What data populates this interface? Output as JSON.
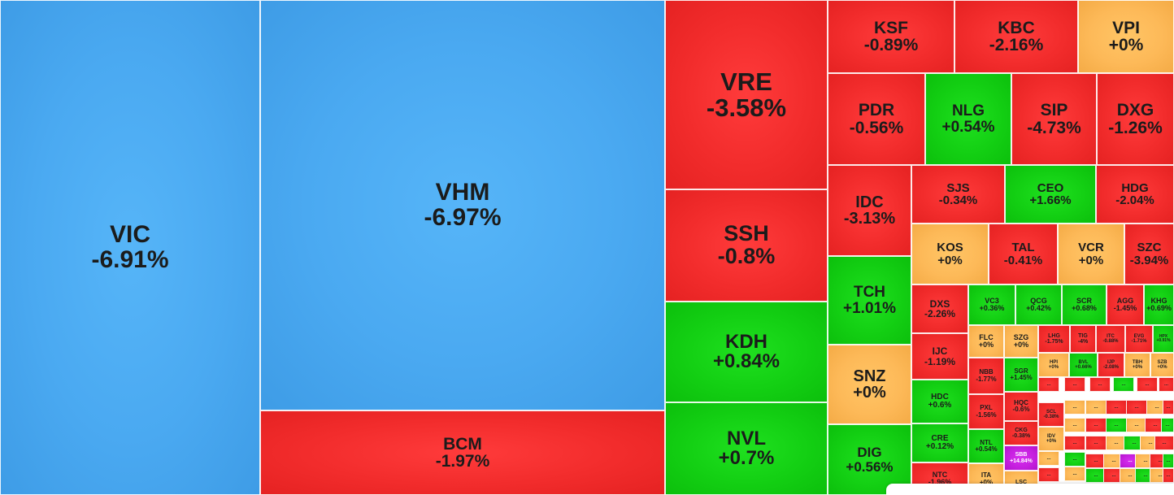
{
  "treemap": {
    "colors": {
      "down_floor": "#4aa9f1",
      "down": "#f22c2c",
      "up": "#13cf13",
      "unchanged": "#fdb958",
      "up_ceiling": "#c51fde"
    },
    "tiles": [
      {
        "symbol": "VIC",
        "change": "-6.91%",
        "color": "blue"
      },
      {
        "symbol": "VHM",
        "change": "-6.97%",
        "color": "blue"
      },
      {
        "symbol": "BCM",
        "change": "-1.97%",
        "color": "red"
      },
      {
        "symbol": "VRE",
        "change": "-3.58%",
        "color": "red"
      },
      {
        "symbol": "SSH",
        "change": "-0.8%",
        "color": "red"
      },
      {
        "symbol": "KDH",
        "change": "+0.84%",
        "color": "green"
      },
      {
        "symbol": "NVL",
        "change": "+0.7%",
        "color": "green"
      },
      {
        "symbol": "KSF",
        "change": "-0.89%",
        "color": "red"
      },
      {
        "symbol": "KBC",
        "change": "-2.16%",
        "color": "red"
      },
      {
        "symbol": "VPI",
        "change": "+0%",
        "color": "yellow"
      },
      {
        "symbol": "PDR",
        "change": "-0.56%",
        "color": "red"
      },
      {
        "symbol": "NLG",
        "change": "+0.54%",
        "color": "green"
      },
      {
        "symbol": "SIP",
        "change": "-4.73%",
        "color": "red"
      },
      {
        "symbol": "DXG",
        "change": "-1.26%",
        "color": "red"
      },
      {
        "symbol": "IDC",
        "change": "-3.13%",
        "color": "red"
      },
      {
        "symbol": "SJS",
        "change": "-0.34%",
        "color": "red"
      },
      {
        "symbol": "CEO",
        "change": "+1.66%",
        "color": "green"
      },
      {
        "symbol": "HDG",
        "change": "-2.04%",
        "color": "red"
      },
      {
        "symbol": "KOS",
        "change": "+0%",
        "color": "yellow"
      },
      {
        "symbol": "TAL",
        "change": "-0.41%",
        "color": "red"
      },
      {
        "symbol": "VCR",
        "change": "+0%",
        "color": "yellow"
      },
      {
        "symbol": "SZC",
        "change": "-3.94%",
        "color": "red"
      },
      {
        "symbol": "TCH",
        "change": "+1.01%",
        "color": "green"
      },
      {
        "symbol": "SNZ",
        "change": "+0%",
        "color": "yellow"
      },
      {
        "symbol": "DIG",
        "change": "+0.56%",
        "color": "green"
      },
      {
        "symbol": "DXS",
        "change": "-2.26%",
        "color": "red"
      },
      {
        "symbol": "VC3",
        "change": "+0.36%",
        "color": "green"
      },
      {
        "symbol": "QCG",
        "change": "+0.42%",
        "color": "green"
      },
      {
        "symbol": "SCR",
        "change": "+0.68%",
        "color": "green"
      },
      {
        "symbol": "AGG",
        "change": "-1.45%",
        "color": "red"
      },
      {
        "symbol": "KHG",
        "change": "+0.69%",
        "color": "green"
      },
      {
        "symbol": "IJC",
        "change": "-1.19%",
        "color": "red"
      },
      {
        "symbol": "HDC",
        "change": "+0.6%",
        "color": "green"
      },
      {
        "symbol": "CRE",
        "change": "+0.12%",
        "color": "green"
      },
      {
        "symbol": "NTC",
        "change": "-1.96%",
        "color": "red"
      },
      {
        "symbol": "FLC",
        "change": "+0%",
        "color": "yellow"
      },
      {
        "symbol": "SZG",
        "change": "+0%",
        "color": "yellow"
      },
      {
        "symbol": "NBB",
        "change": "-1.77%",
        "color": "red"
      },
      {
        "symbol": "SGR",
        "change": "+1.45%",
        "color": "green"
      },
      {
        "symbol": "PXL",
        "change": "-1.56%",
        "color": "red"
      },
      {
        "symbol": "HQC",
        "change": "-0.6%",
        "color": "red"
      },
      {
        "symbol": "NTL",
        "change": "+0.54%",
        "color": "green"
      },
      {
        "symbol": "CKG",
        "change": "-0.38%",
        "color": "red"
      },
      {
        "symbol": "SBB",
        "change": "+14.84%",
        "color": "purple"
      },
      {
        "symbol": "ITA",
        "change": "+0%",
        "color": "yellow"
      },
      {
        "symbol": "LSC",
        "change": "",
        "color": "yellow"
      },
      {
        "symbol": "LHG",
        "change": "-1.75%",
        "color": "red"
      },
      {
        "symbol": "TIG",
        "change": "-4%",
        "color": "red"
      },
      {
        "symbol": "ITC",
        "change": "-0.88%",
        "color": "red"
      },
      {
        "symbol": "EVG",
        "change": "-1.71%",
        "color": "red"
      },
      {
        "symbol": "HPX",
        "change": "+0.91%",
        "color": "green"
      },
      {
        "symbol": "HPI",
        "change": "+0%",
        "color": "yellow"
      },
      {
        "symbol": "BVL",
        "change": "+0.66%",
        "color": "green"
      },
      {
        "symbol": "IJP",
        "change": "-2.08%",
        "color": "red"
      },
      {
        "symbol": "TBH",
        "change": "+0%",
        "color": "yellow"
      },
      {
        "symbol": "SZB",
        "change": "+0%",
        "color": "yellow"
      },
      {
        "symbol": "SCL",
        "change": "-0.38%",
        "color": "red"
      },
      {
        "symbol": "IDV",
        "change": "+0%",
        "color": "yellow"
      }
    ]
  }
}
